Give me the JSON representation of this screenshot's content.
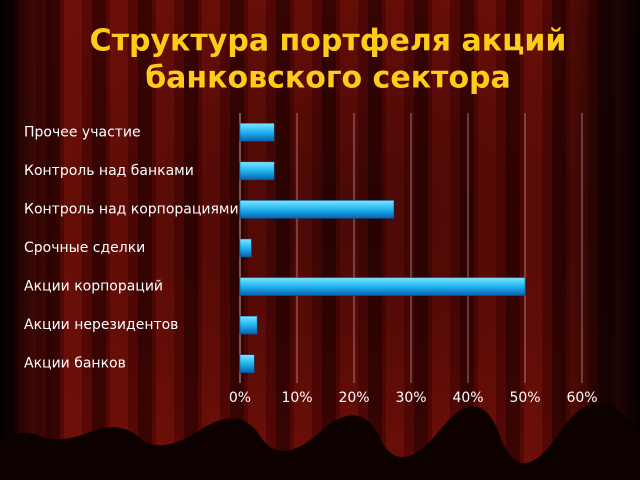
{
  "chart_data": {
    "type": "bar",
    "orientation": "horizontal",
    "title": [
      "Структура портфеля акций",
      "банковского сектора"
    ],
    "categories": [
      "Прочее участие",
      "Контроль над банками",
      "Контроль над корпорациями",
      "Срочные сделки",
      "Акции корпораций",
      "Акции нерезидентов",
      "Акции банков"
    ],
    "values": [
      6,
      6,
      27,
      2,
      50,
      3,
      2.5
    ],
    "color": "#1fa8e8",
    "xlim": [
      0,
      60
    ],
    "xticks": [
      {
        "value": 0,
        "label": "0%"
      },
      {
        "value": 10,
        "label": "10%"
      },
      {
        "value": 20,
        "label": "20%"
      },
      {
        "value": 30,
        "label": "30%"
      },
      {
        "value": 40,
        "label": "40%"
      },
      {
        "value": 50,
        "label": "50%"
      },
      {
        "value": 60,
        "label": "60%"
      }
    ],
    "grid": true
  }
}
